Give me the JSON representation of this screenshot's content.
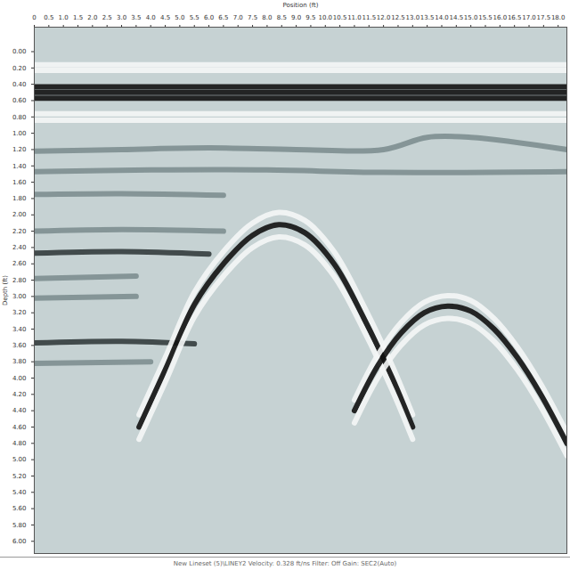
{
  "chart_data": {
    "type": "line",
    "x_label": "Position (ft)",
    "y_label": "Depth (ft)",
    "caption": "New Lineset (5)\\LINEY2   Velocity: 0.328 ft/ns   Filter: Off   Gain: SEC2(Auto)",
    "xlim": [
      0,
      18.3
    ],
    "ylim": [
      6.15,
      -0.3
    ],
    "xticks": [
      0,
      0.5,
      {
        "value": 1,
        "label": "1.0"
      },
      1.5,
      {
        "value": 2,
        "label": "2.0"
      },
      2.5,
      {
        "value": 3,
        "label": "3.0"
      },
      3.5,
      {
        "value": 4,
        "label": "4.0"
      },
      4.5,
      {
        "value": 5,
        "label": "5.0"
      },
      5.5,
      {
        "value": 6,
        "label": "6.0"
      },
      6.5,
      {
        "value": 7,
        "label": "7.0"
      },
      7.5,
      {
        "value": 8,
        "label": "8.0"
      },
      8.5,
      {
        "value": 9,
        "label": "9.0"
      },
      9.5,
      {
        "value": 10,
        "label": "10.0"
      },
      10.5,
      {
        "value": 11,
        "label": "11.0"
      },
      11.5,
      {
        "value": 12,
        "label": "12.0"
      },
      12.5,
      {
        "value": 13,
        "label": "13.0"
      },
      13.5,
      {
        "value": 14,
        "label": "14.0"
      },
      14.5,
      {
        "value": 15,
        "label": "15.0"
      },
      15.5,
      {
        "value": 16,
        "label": "16.0"
      },
      16.5,
      {
        "value": 17,
        "label": "17.0"
      },
      17.5,
      {
        "value": 18,
        "label": "18.0"
      }
    ],
    "yticks": [
      {
        "value": 0,
        "label": "0.00"
      },
      {
        "value": 0.2,
        "label": "0.20"
      },
      {
        "value": 0.4,
        "label": "0.40"
      },
      {
        "value": 0.6,
        "label": "0.60"
      },
      {
        "value": 0.8,
        "label": "0.80"
      },
      {
        "value": 1,
        "label": "1.00"
      },
      {
        "value": 1.2,
        "label": "1.20"
      },
      {
        "value": 1.4,
        "label": "1.40"
      },
      {
        "value": 1.6,
        "label": "1.60"
      },
      {
        "value": 1.8,
        "label": "1.80"
      },
      {
        "value": 2,
        "label": "2.00"
      },
      {
        "value": 2.2,
        "label": "2.20"
      },
      {
        "value": 2.4,
        "label": "2.40"
      },
      {
        "value": 2.6,
        "label": "2.60"
      },
      {
        "value": 2.8,
        "label": "2.80"
      },
      {
        "value": 3,
        "label": "3.00"
      },
      {
        "value": 3.2,
        "label": "3.20"
      },
      {
        "value": 3.4,
        "label": "3.40"
      },
      {
        "value": 3.6,
        "label": "3.60"
      },
      {
        "value": 3.8,
        "label": "3.80"
      },
      {
        "value": 4,
        "label": "4.00"
      },
      {
        "value": 4.2,
        "label": "4.20"
      },
      {
        "value": 4.4,
        "label": "4.40"
      },
      {
        "value": 4.6,
        "label": "4.60"
      },
      {
        "value": 4.8,
        "label": "4.80"
      },
      {
        "value": 5,
        "label": "5.00"
      },
      {
        "value": 5.2,
        "label": "5.20"
      },
      {
        "value": 5.4,
        "label": "5.40"
      },
      {
        "value": 5.6,
        "label": "5.60"
      },
      {
        "value": 5.8,
        "label": "5.80"
      },
      {
        "value": 6,
        "label": "6.00"
      }
    ],
    "grid": false,
    "series": [
      {
        "color": "#f4f6f6",
        "x": [
          0,
          18.3
        ],
        "values": [
          0.16,
          0.16
        ]
      },
      {
        "color": "#f4f6f6",
        "x": [
          0,
          18.3
        ],
        "values": [
          0.23,
          0.23
        ]
      },
      {
        "color": "#111111",
        "x": [
          0,
          18.3
        ],
        "values": [
          0.43,
          0.43
        ]
      },
      {
        "color": "#111111",
        "x": [
          0,
          18.3
        ],
        "values": [
          0.5,
          0.5
        ]
      },
      {
        "color": "#111111",
        "x": [
          0,
          18.3
        ],
        "values": [
          0.57,
          0.57
        ]
      },
      {
        "color": "#f4f6f6",
        "x": [
          0,
          18.3
        ],
        "values": [
          0.76,
          0.76
        ]
      },
      {
        "color": "#f4f6f6",
        "x": [
          0,
          18.3
        ],
        "values": [
          0.84,
          0.84
        ]
      },
      {
        "color": "#7d8e90",
        "x": [
          0,
          3,
          6,
          9,
          12,
          13.5,
          15,
          18.3
        ],
        "values": [
          1.22,
          1.2,
          1.18,
          1.2,
          1.2,
          1.05,
          1.05,
          1.2
        ]
      },
      {
        "color": "#7d8e90",
        "x": [
          0,
          4,
          8,
          12,
          18.3
        ],
        "values": [
          1.47,
          1.45,
          1.45,
          1.48,
          1.47
        ]
      },
      {
        "color": "#7d8e90",
        "x": [
          0,
          3,
          6.5
        ],
        "values": [
          1.75,
          1.74,
          1.76
        ]
      },
      {
        "color": "#7d8e90",
        "x": [
          0,
          3,
          6.5
        ],
        "values": [
          2.2,
          2.18,
          2.2
        ]
      },
      {
        "color": "#333c3d",
        "x": [
          0,
          3,
          6
        ],
        "values": [
          2.47,
          2.45,
          2.48
        ]
      },
      {
        "color": "#7d8e90",
        "x": [
          0,
          3.5
        ],
        "values": [
          2.78,
          2.75
        ]
      },
      {
        "color": "#7d8e90",
        "x": [
          0,
          3.5
        ],
        "values": [
          3.02,
          3.0
        ]
      },
      {
        "color": "#333c3d",
        "x": [
          0,
          3,
          5.5
        ],
        "values": [
          3.57,
          3.55,
          3.58
        ]
      },
      {
        "color": "#7d8e90",
        "x": [
          0,
          4
        ],
        "values": [
          3.82,
          3.8
        ]
      },
      {
        "color": "#f4f6f6",
        "x": [
          3.6,
          4.5,
          5.5,
          6.5,
          7.5,
          8.4,
          9.3,
          10.3,
          11.3,
          12.3,
          13.0
        ],
        "values": [
          4.45,
          3.75,
          2.95,
          2.45,
          2.1,
          1.97,
          2.07,
          2.45,
          3.1,
          3.85,
          4.45
        ]
      },
      {
        "color": "#111111",
        "x": [
          3.6,
          4.5,
          5.5,
          6.5,
          7.5,
          8.4,
          9.3,
          10.3,
          11.3,
          12.3,
          13.0
        ],
        "values": [
          4.6,
          3.9,
          3.1,
          2.6,
          2.25,
          2.12,
          2.22,
          2.6,
          3.25,
          4.0,
          4.6
        ]
      },
      {
        "color": "#f4f6f6",
        "x": [
          3.6,
          4.5,
          5.5,
          6.5,
          7.5,
          8.4,
          9.3,
          10.3,
          11.3,
          12.3,
          13.0
        ],
        "values": [
          4.75,
          4.05,
          3.25,
          2.75,
          2.4,
          2.27,
          2.37,
          2.75,
          3.4,
          4.15,
          4.75
        ]
      },
      {
        "color": "#f4f6f6",
        "x": [
          11.0,
          11.8,
          12.6,
          13.4,
          14.2,
          15.0,
          15.8,
          16.6,
          17.4,
          18.3
        ],
        "values": [
          4.27,
          3.72,
          3.32,
          3.07,
          2.99,
          3.05,
          3.27,
          3.62,
          4.07,
          4.67
        ]
      },
      {
        "color": "#111111",
        "x": [
          11.0,
          11.8,
          12.6,
          13.4,
          14.2,
          15.0,
          15.8,
          16.6,
          17.4,
          18.3
        ],
        "values": [
          4.4,
          3.85,
          3.45,
          3.2,
          3.12,
          3.18,
          3.4,
          3.75,
          4.2,
          4.8
        ]
      },
      {
        "color": "#f4f6f6",
        "x": [
          11.0,
          11.8,
          12.6,
          13.4,
          14.2,
          15.0,
          15.8,
          16.6,
          17.4,
          18.3
        ],
        "values": [
          4.55,
          4.0,
          3.6,
          3.35,
          3.27,
          3.33,
          3.55,
          3.9,
          4.35,
          4.95
        ]
      }
    ]
  }
}
